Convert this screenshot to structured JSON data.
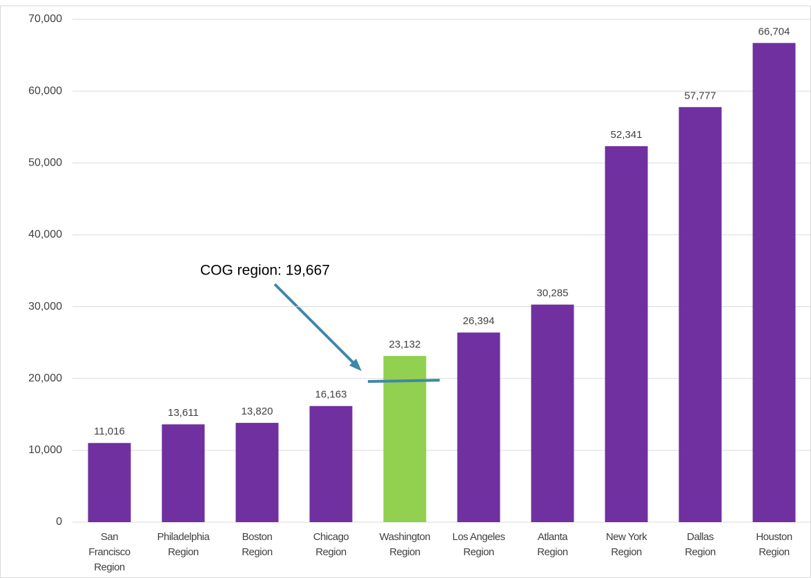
{
  "chart_data": {
    "type": "bar",
    "categories": [
      "San\nFrancisco\nRegion",
      "Philadelphia\nRegion",
      "Boston\nRegion",
      "Chicago\nRegion",
      "Washington\nRegion",
      "Los Angeles\nRegion",
      "Atlanta\nRegion",
      "New York\nRegion",
      "Dallas\nRegion",
      "Houston\nRegion"
    ],
    "values": [
      11016,
      13611,
      13820,
      16163,
      23132,
      26394,
      30285,
      52341,
      57777,
      66704
    ],
    "value_labels": [
      "11,016",
      "13,611",
      "13,820",
      "16,163",
      "23,132",
      "26,394",
      "30,285",
      "52,341",
      "57,777",
      "66,704"
    ],
    "colors": [
      "#7030a0",
      "#7030a0",
      "#7030a0",
      "#7030a0",
      "#92d050",
      "#7030a0",
      "#7030a0",
      "#7030a0",
      "#7030a0",
      "#7030a0"
    ],
    "ylim": [
      0,
      70000
    ],
    "yticks": [
      0,
      {
        "value": 10000,
        "label": "10,000"
      },
      {
        "value": 20000,
        "label": "20,000"
      },
      {
        "value": 30000,
        "label": "30,000"
      },
      {
        "value": 40000,
        "label": "40,000"
      },
      {
        "value": 50000,
        "label": "50,000"
      },
      {
        "value": 60000,
        "label": "60,000"
      },
      {
        "value": 70000,
        "label": "70,000"
      }
    ],
    "grid": true,
    "annotation": {
      "text": "COG region: 19,667",
      "value": 19667,
      "color": "#3f87a9"
    }
  }
}
